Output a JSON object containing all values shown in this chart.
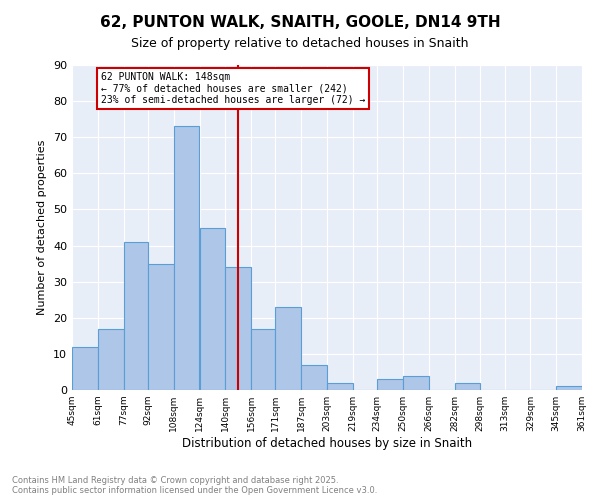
{
  "title": "62, PUNTON WALK, SNAITH, GOOLE, DN14 9TH",
  "subtitle": "Size of property relative to detached houses in Snaith",
  "xlabel": "Distribution of detached houses by size in Snaith",
  "ylabel": "Number of detached properties",
  "bar_color": "#aec6e8",
  "bar_edge_color": "#5a9ed6",
  "vline_color": "#cc0000",
  "vline_x": 148,
  "annotation_text": "62 PUNTON WALK: 148sqm\n← 77% of detached houses are smaller (242)\n23% of semi-detached houses are larger (72) →",
  "annotation_box_color": "#cc0000",
  "bins": [
    45,
    61,
    77,
    92,
    108,
    124,
    140,
    156,
    171,
    187,
    203,
    219,
    234,
    250,
    266,
    282,
    298,
    313,
    329,
    345,
    361
  ],
  "bar_heights": [
    12,
    17,
    41,
    35,
    73,
    45,
    34,
    17,
    23,
    7,
    2,
    0,
    3,
    4,
    0,
    2,
    0,
    0,
    0,
    1
  ],
  "ylim": [
    0,
    90
  ],
  "yticks": [
    0,
    10,
    20,
    30,
    40,
    50,
    60,
    70,
    80,
    90
  ],
  "background_color": "#e8eef8",
  "footer_text": "Contains HM Land Registry data © Crown copyright and database right 2025.\nContains public sector information licensed under the Open Government Licence v3.0.",
  "tick_labels": [
    "45sqm",
    "61sqm",
    "77sqm",
    "92sqm",
    "108sqm",
    "124sqm",
    "140sqm",
    "156sqm",
    "171sqm",
    "187sqm",
    "203sqm",
    "219sqm",
    "234sqm",
    "250sqm",
    "266sqm",
    "282sqm",
    "298sqm",
    "313sqm",
    "329sqm",
    "345sqm",
    "361sqm"
  ]
}
